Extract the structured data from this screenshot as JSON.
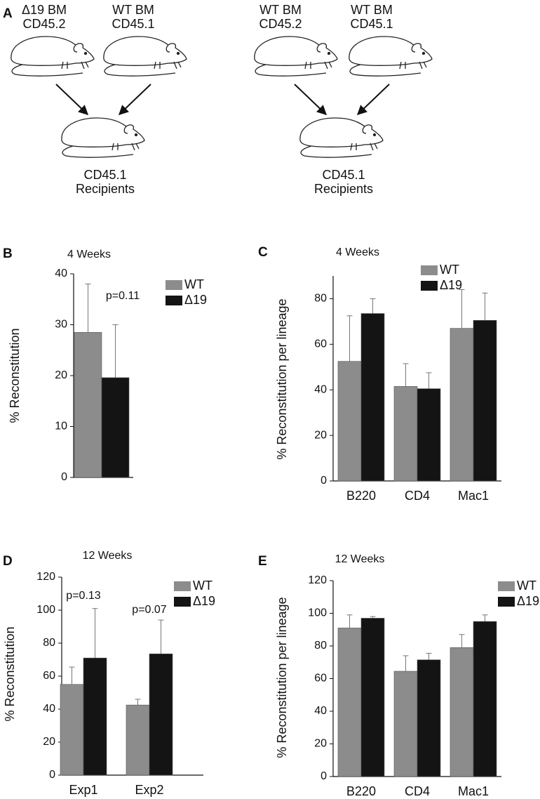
{
  "diagram": {
    "panel": "A",
    "groups": [
      {
        "donors": [
          [
            "Δ19 BM",
            "CD45.2"
          ],
          [
            "WT BM",
            "CD45.1"
          ]
        ],
        "recipient": [
          "CD45.1",
          "Recipients"
        ]
      },
      {
        "donors": [
          [
            "WT BM",
            "CD45.2"
          ],
          [
            "WT BM",
            "CD45.1"
          ]
        ],
        "recipient": [
          "CD45.1",
          "Recipients"
        ]
      }
    ]
  },
  "chart_data": [
    {
      "type": "bar",
      "panel": "B",
      "title": "4 Weeks",
      "ylabel": "% Reconstitution",
      "categories": [
        null
      ],
      "series": [
        {
          "name": "WT",
          "color": "#8c8c8c",
          "values": [
            28.5
          ],
          "errors": [
            9.5
          ]
        },
        {
          "name": "Δ19",
          "color": "#141414",
          "values": [
            19.6
          ],
          "errors": [
            10.4
          ]
        }
      ],
      "ylim": [
        0,
        40
      ],
      "yticks": [
        0,
        10,
        20,
        30,
        40
      ],
      "legend": "upper right",
      "annotations": [
        "p=0.11"
      ]
    },
    {
      "type": "bar",
      "panel": "C",
      "title": "4 Weeks",
      "ylabel": "% Reconstitution per lineage",
      "categories": [
        "B220",
        "CD4",
        "Mac1"
      ],
      "series": [
        {
          "name": "WT",
          "color": "#8c8c8c",
          "values": [
            52.5,
            41.5,
            67
          ],
          "errors": [
            20,
            10,
            17
          ]
        },
        {
          "name": "Δ19",
          "color": "#141414",
          "values": [
            73.5,
            40.5,
            70.5
          ],
          "errors": [
            6.5,
            7,
            12
          ]
        }
      ],
      "ylim": [
        0,
        90
      ],
      "yticks": [
        0,
        20,
        40,
        60,
        80
      ],
      "legend": "upper right"
    },
    {
      "type": "bar",
      "panel": "D",
      "title": "12 Weeks",
      "ylabel": "% Reconstitution",
      "categories": [
        "Exp1",
        "Exp2"
      ],
      "series": [
        {
          "name": "WT",
          "color": "#8c8c8c",
          "values": [
            55,
            42.5
          ],
          "errors": [
            10.5,
            3.5
          ]
        },
        {
          "name": "Δ19",
          "color": "#141414",
          "values": [
            71,
            73.5
          ],
          "errors": [
            30,
            20.5
          ]
        }
      ],
      "ylim": [
        0,
        120
      ],
      "yticks": [
        0,
        20,
        40,
        60,
        80,
        100,
        120
      ],
      "legend": "upper right",
      "annotations": [
        "p=0.13",
        "p=0.07"
      ]
    },
    {
      "type": "bar",
      "panel": "E",
      "title": "12 Weeks",
      "ylabel": "% Reconstitution per lineage",
      "categories": [
        "B220",
        "CD4",
        "Mac1"
      ],
      "series": [
        {
          "name": "WT",
          "color": "#8c8c8c",
          "values": [
            91,
            64.5,
            79
          ],
          "errors": [
            8,
            9.5,
            8
          ]
        },
        {
          "name": "Δ19",
          "color": "#141414",
          "values": [
            97,
            71.5,
            95
          ],
          "errors": [
            1,
            4,
            4
          ]
        }
      ],
      "ylim": [
        0,
        120
      ],
      "yticks": [
        0,
        20,
        40,
        60,
        80,
        100,
        120
      ],
      "legend": "upper right"
    }
  ]
}
